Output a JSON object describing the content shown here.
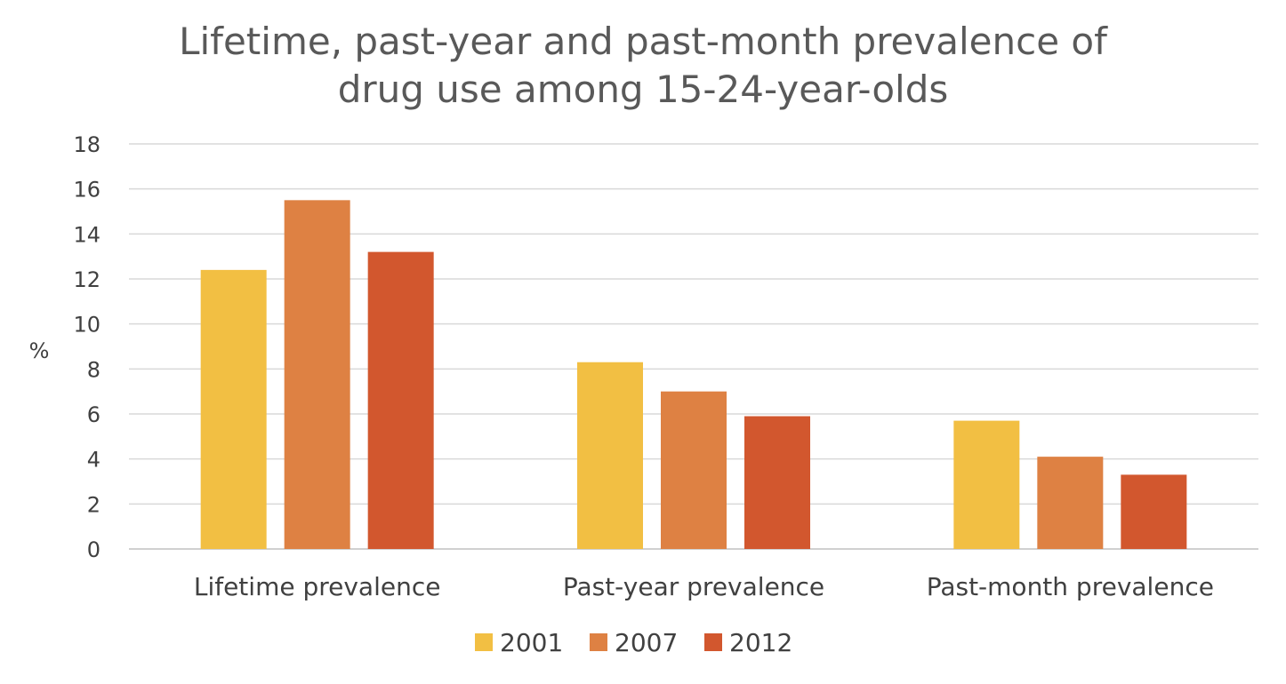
{
  "chart_data": {
    "type": "bar",
    "title": "Lifetime, past-year and past-month prevalence of drug use among 15-24-year-olds",
    "title_lines": [
      "Lifetime, past-year and past-month prevalence of",
      "drug use among 15-24-year-olds"
    ],
    "ylabel": "%",
    "xlabel": "",
    "ylim": [
      0,
      18
    ],
    "yticks": [
      0,
      2,
      4,
      6,
      8,
      10,
      12,
      14,
      16,
      18
    ],
    "grid": true,
    "legend_position": "bottom",
    "categories": [
      "Lifetime prevalence",
      "Past-year prevalence",
      "Past-month prevalence"
    ],
    "series": [
      {
        "name": "2001",
        "color": "#F2BF43",
        "values": [
          12.4,
          8.3,
          5.7
        ]
      },
      {
        "name": "2007",
        "color": "#DE8143",
        "values": [
          15.5,
          7.0,
          4.1
        ]
      },
      {
        "name": "2012",
        "color": "#D2572E",
        "values": [
          13.2,
          5.9,
          3.3
        ]
      }
    ]
  }
}
